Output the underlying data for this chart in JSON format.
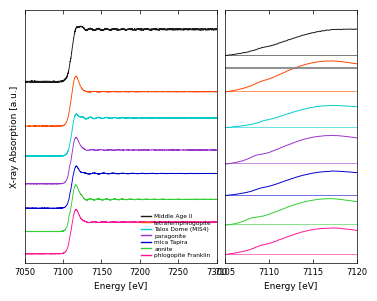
{
  "left_xlim": [
    7050,
    7300
  ],
  "right_xlim": [
    7105,
    7120
  ],
  "ylabel": "X-ray Absorption [a.u.]",
  "xlabel": "Energy [eV]",
  "legend_entries": [
    {
      "label": "Middle Age II",
      "color": "#1a1a1a"
    },
    {
      "label": "tetraferriphlogopite",
      "color": "#ff4500"
    },
    {
      "label": "Talos Dome (MIS4)",
      "color": "#00cccc"
    },
    {
      "label": "paragonite",
      "color": "#9932cc"
    },
    {
      "label": "mica Tapira",
      "color": "#0000cd"
    },
    {
      "label": "annite",
      "color": "#32cd32"
    },
    {
      "label": "phlogopite Franklin",
      "color": "#ff1493"
    }
  ],
  "left_xticks": [
    7050,
    7100,
    7150,
    7200,
    7250,
    7300
  ],
  "right_xticks": [
    7105,
    7110,
    7115,
    7120
  ]
}
